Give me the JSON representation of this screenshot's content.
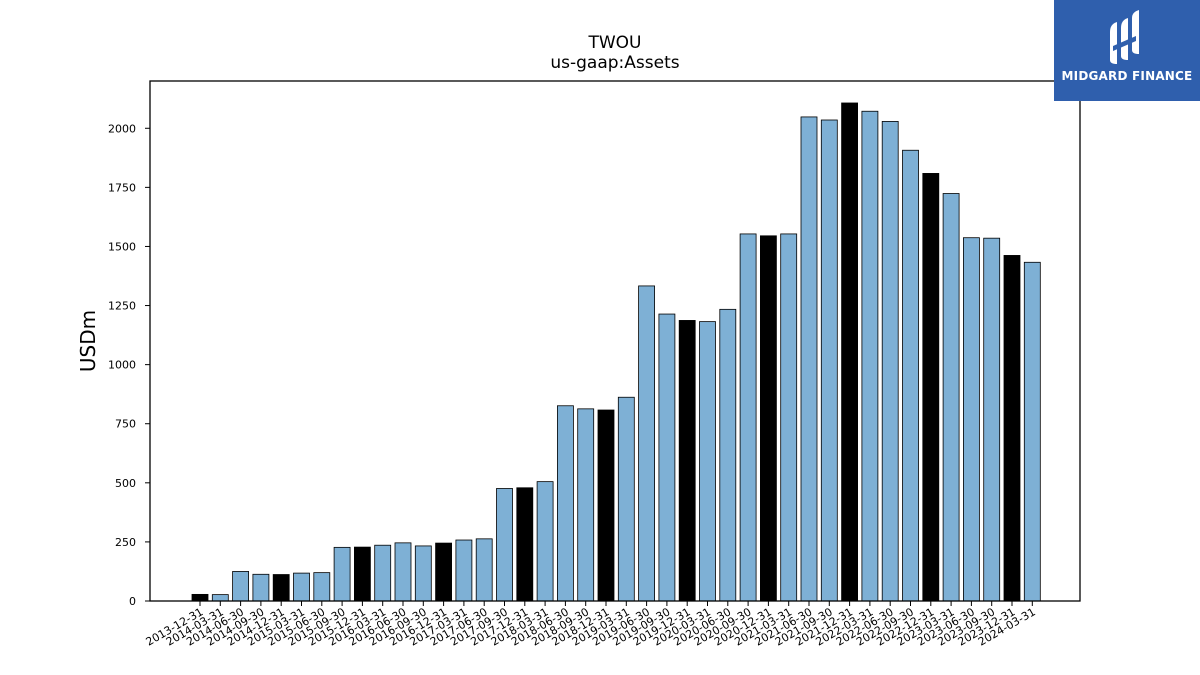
{
  "logo": {
    "text": "MIDGARD FINANCE",
    "icon": "midgard-logo-icon",
    "background": "#2f5fad"
  },
  "colors": {
    "bar_default": "#7eb0d5",
    "bar_highlight": "#000000",
    "bar_edge": "#000000"
  },
  "chart_data": {
    "type": "bar",
    "title": "TWOU",
    "subtitle": "us-gaap:Assets",
    "xlabel": "",
    "ylabel": "USDm",
    "ylim": [
      0,
      2200
    ],
    "yticks": [
      0,
      250,
      500,
      750,
      1000,
      1250,
      1500,
      1750,
      2000
    ],
    "grid": false,
    "categories": [
      "2013-12-31",
      "2014-03-31",
      "2014-06-30",
      "2014-09-30",
      "2014-12-31",
      "2015-03-31",
      "2015-06-30",
      "2015-09-30",
      "2015-12-31",
      "2016-03-31",
      "2016-06-30",
      "2016-09-30",
      "2016-12-31",
      "2017-03-31",
      "2017-06-30",
      "2017-09-30",
      "2017-12-31",
      "2018-03-31",
      "2018-06-30",
      "2018-09-30",
      "2018-12-31",
      "2019-03-31",
      "2019-06-30",
      "2019-09-30",
      "2019-12-31",
      "2020-03-31",
      "2020-06-30",
      "2020-09-30",
      "2020-12-31",
      "2021-03-31",
      "2021-06-30",
      "2021-09-30",
      "2021-12-31",
      "2022-03-31",
      "2022-06-30",
      "2022-09-30",
      "2022-12-31",
      "2023-03-31",
      "2023-06-30",
      "2023-09-30",
      "2023-12-31",
      "2024-03-31"
    ],
    "values": [
      28,
      27,
      125,
      113,
      112,
      118,
      120,
      227,
      228,
      236,
      246,
      233,
      245,
      258,
      263,
      476,
      479,
      505,
      826,
      813,
      808,
      862,
      1333,
      1214,
      1187,
      1182,
      1234,
      1553,
      1545,
      1553,
      2048,
      2035,
      2107,
      2072,
      2029,
      1907,
      1809,
      1724,
      1537,
      1535,
      1462,
      1433
    ],
    "highlight": [
      true,
      false,
      false,
      false,
      true,
      false,
      false,
      false,
      true,
      false,
      false,
      false,
      true,
      false,
      false,
      false,
      true,
      false,
      false,
      false,
      true,
      false,
      false,
      false,
      true,
      false,
      false,
      false,
      true,
      false,
      false,
      false,
      true,
      false,
      false,
      false,
      true,
      false,
      false,
      false,
      true,
      false
    ]
  }
}
